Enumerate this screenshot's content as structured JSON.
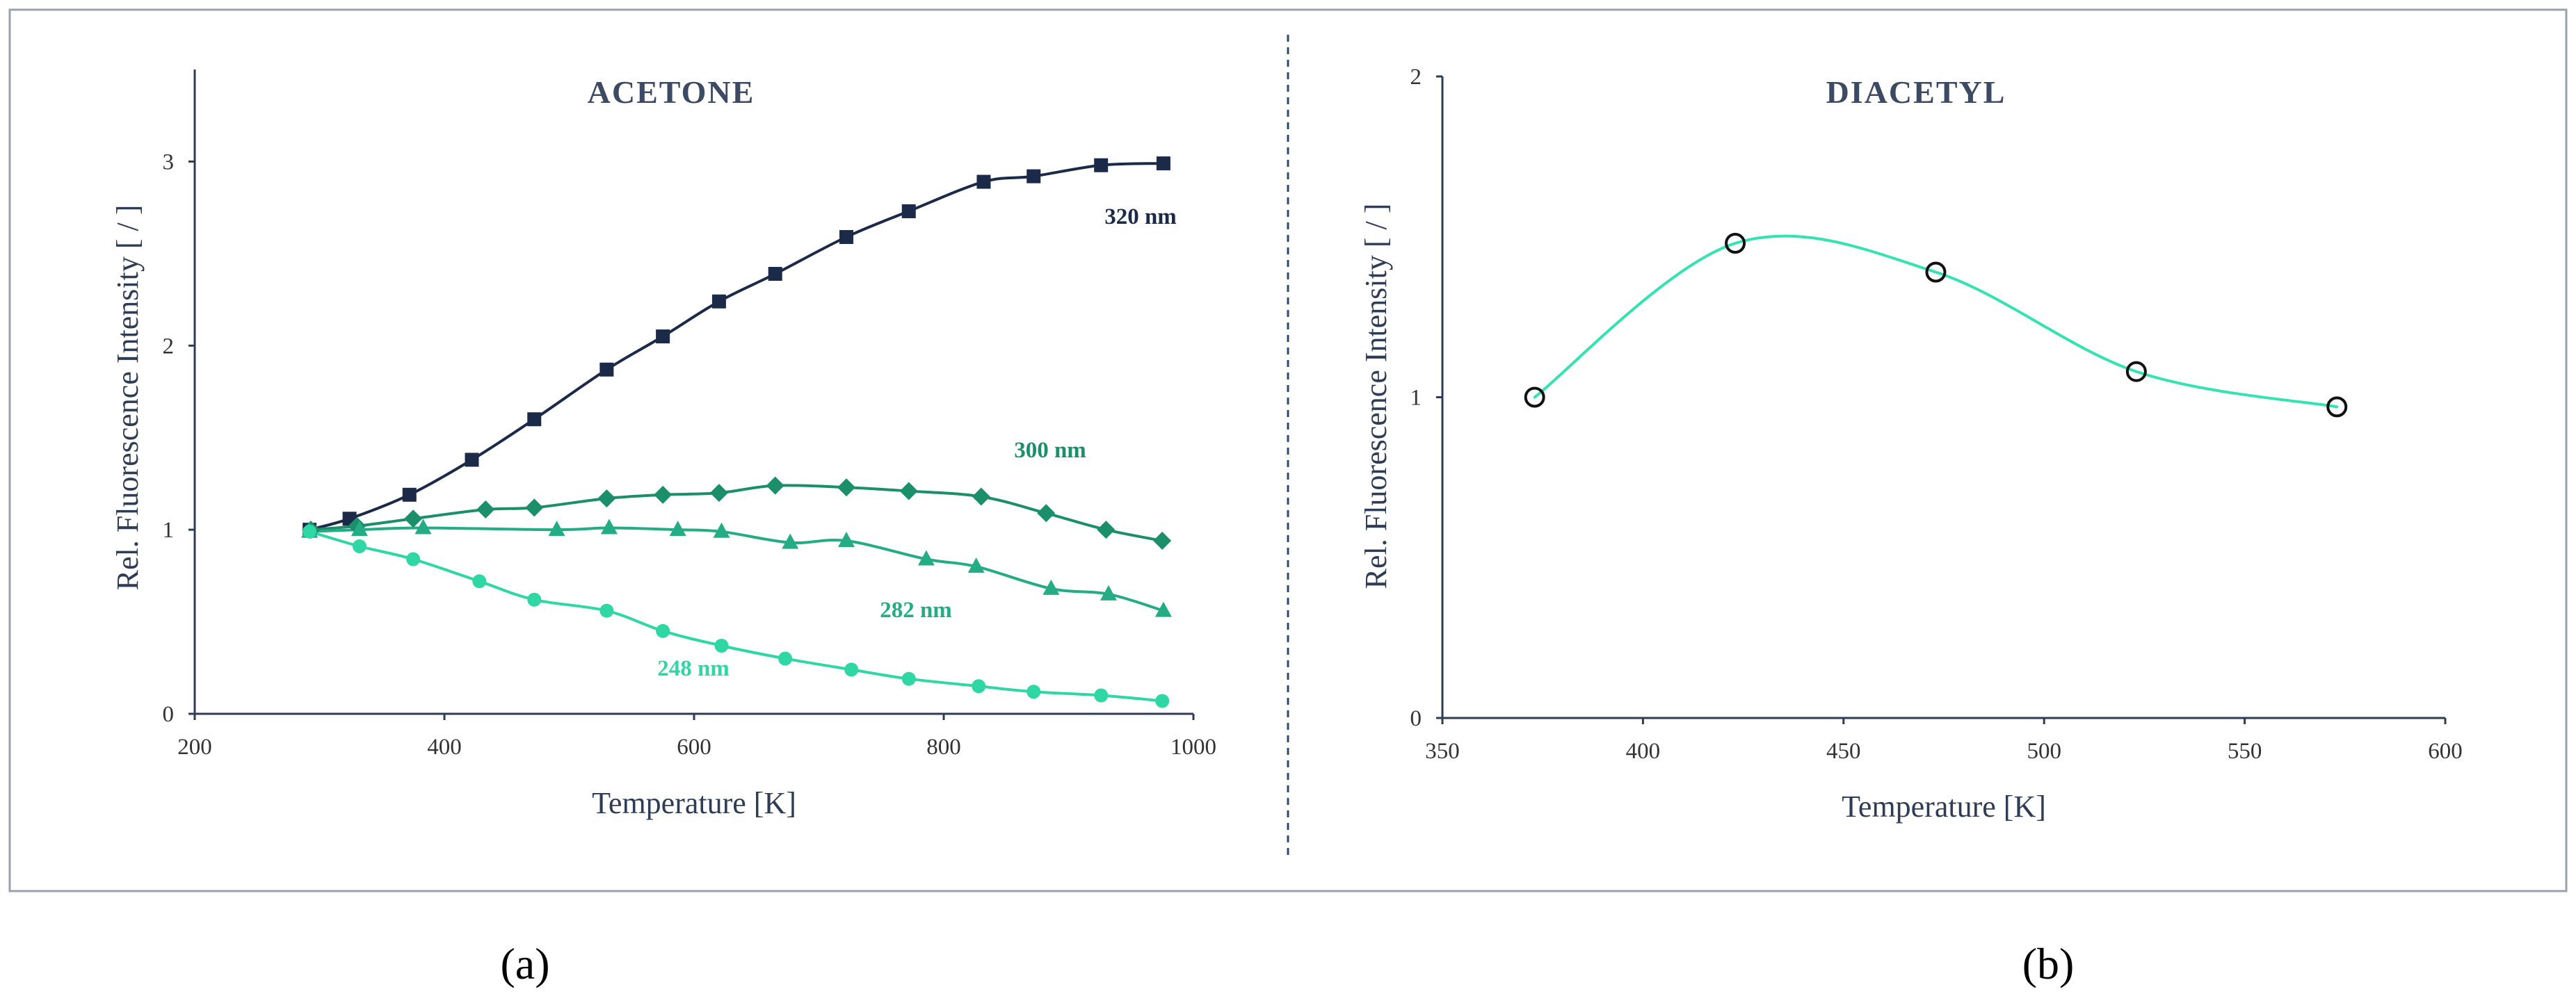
{
  "chart_data": [
    {
      "type": "line",
      "title": "ACETONE",
      "xlabel": "Temperature [K]",
      "ylabel": "Rel. Fluorescence Intensity [ / ]",
      "xlim": [
        200,
        1000
      ],
      "ylim": [
        0,
        3.5
      ],
      "xticks": [
        200,
        400,
        600,
        800,
        1000
      ],
      "yticks": [
        0,
        1,
        2,
        3
      ],
      "grid": false,
      "series": [
        {
          "name": "320 nm",
          "color": "#1b2a48",
          "marker": "square",
          "x": [
            292,
            324,
            372,
            422,
            472,
            530,
            575,
            620,
            665,
            722,
            772,
            832,
            872,
            926,
            976
          ],
          "y": [
            1.0,
            1.06,
            1.19,
            1.38,
            1.6,
            1.87,
            2.05,
            2.24,
            2.39,
            2.59,
            2.73,
            2.89,
            2.92,
            2.98,
            2.99
          ]
        },
        {
          "name": "300 nm",
          "color": "#1a8f6a",
          "marker": "diamond",
          "x": [
            293,
            330,
            375,
            433,
            472,
            530,
            575,
            620,
            665,
            722,
            772,
            830,
            882,
            930,
            975
          ],
          "y": [
            1.0,
            1.02,
            1.06,
            1.11,
            1.12,
            1.17,
            1.19,
            1.2,
            1.24,
            1.23,
            1.21,
            1.18,
            1.09,
            1.0,
            0.94
          ]
        },
        {
          "name": "282 nm",
          "color": "#24ad84",
          "marker": "triangle",
          "x": [
            292,
            332,
            383,
            490,
            532,
            587,
            622,
            677,
            722,
            786,
            826,
            886,
            932,
            976
          ],
          "y": [
            0.99,
            1.0,
            1.01,
            1.0,
            1.01,
            1.0,
            0.99,
            0.93,
            0.94,
            0.84,
            0.8,
            0.68,
            0.65,
            0.56
          ]
        },
        {
          "name": "248 nm",
          "color": "#2ed7a3",
          "marker": "circle",
          "x": [
            292,
            332,
            375,
            428,
            472,
            530,
            575,
            622,
            673,
            726,
            772,
            828,
            872,
            926,
            975
          ],
          "y": [
            0.99,
            0.91,
            0.84,
            0.72,
            0.62,
            0.56,
            0.45,
            0.37,
            0.3,
            0.24,
            0.19,
            0.15,
            0.12,
            0.1,
            0.07
          ]
        }
      ]
    },
    {
      "type": "line",
      "title": "DIACETYL",
      "xlabel": "Temperature [K]",
      "ylabel": "Rel. Fluorescence Intensity [ / ]",
      "xlim": [
        350,
        600
      ],
      "ylim": [
        0,
        2
      ],
      "xticks": [
        350,
        400,
        450,
        500,
        550,
        600
      ],
      "yticks": [
        0,
        1,
        2
      ],
      "grid": false,
      "series": [
        {
          "color": "#33e3b2",
          "marker": "open-circle",
          "x": [
            373,
            423,
            473,
            523,
            573
          ],
          "y": [
            1.0,
            1.48,
            1.39,
            1.08,
            0.97
          ]
        }
      ]
    }
  ],
  "panel_labels": [
    "(a)",
    "(b)"
  ],
  "colors": {
    "frame": "#9aa3ad",
    "axis": "#2e3d55",
    "divider": "#2d4a6b",
    "acetone_title": "#3d4a63"
  }
}
